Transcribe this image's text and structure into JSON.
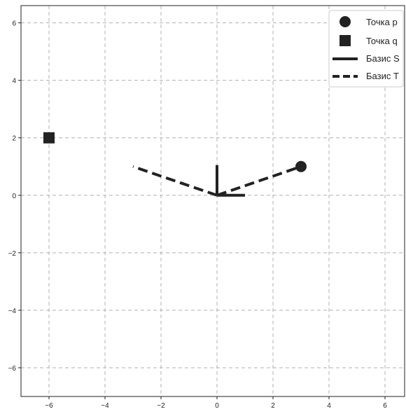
{
  "chart_data": {
    "type": "scatter",
    "title": "",
    "xlabel": "",
    "ylabel": "",
    "xlim": [
      -7,
      6.7
    ],
    "ylim": [
      -7,
      6.6
    ],
    "xticks": [
      -6,
      -4,
      -2,
      0,
      2,
      4,
      6
    ],
    "yticks": [
      -6,
      -4,
      -2,
      0,
      2,
      4,
      6
    ],
    "xtick_labels": [
      "−6",
      "−4",
      "−2",
      "0",
      "2",
      "4",
      "6"
    ],
    "ytick_labels": [
      "−6",
      "−4",
      "−2",
      "0",
      "2",
      "4",
      "6"
    ],
    "grid": true,
    "legend_position": "top-right",
    "color": "#222222",
    "points": [
      {
        "name": "Точка p",
        "marker": "circle",
        "x": 3,
        "y": 1
      },
      {
        "name": "Точка q",
        "marker": "square",
        "x": -6,
        "y": 2
      }
    ],
    "bases": [
      {
        "name": "Базис S",
        "style": "solid",
        "vectors": [
          [
            1,
            0
          ],
          [
            0,
            1.05
          ]
        ]
      },
      {
        "name": "Базис T",
        "style": "dashed",
        "vectors": [
          [
            3,
            1
          ],
          [
            -3,
            1
          ]
        ]
      }
    ],
    "legend": [
      {
        "label": "Точка p",
        "marker": "circle"
      },
      {
        "label": "Точка q",
        "marker": "square"
      },
      {
        "label": "Базис S",
        "marker": "solid-line"
      },
      {
        "label": "Базис T",
        "marker": "dashed-line"
      }
    ]
  }
}
